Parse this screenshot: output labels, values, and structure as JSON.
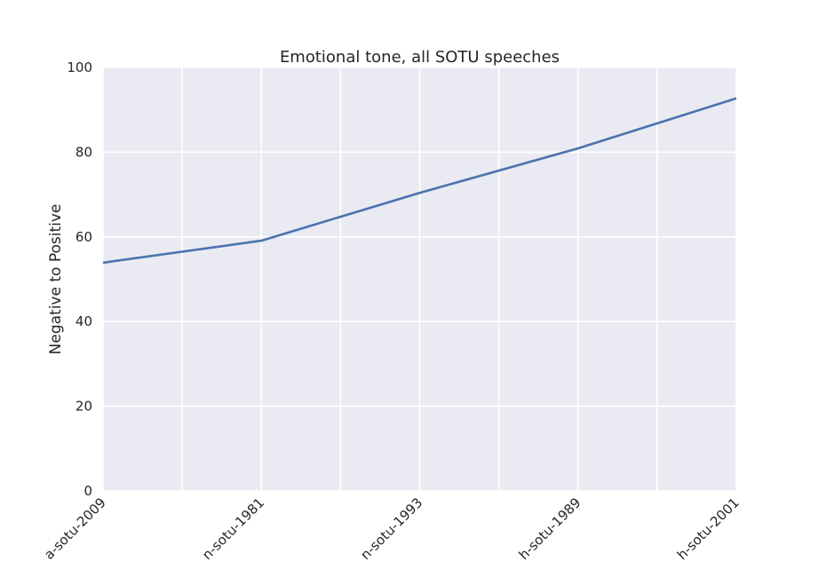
{
  "chart_data": {
    "type": "line",
    "title": "Emotional tone, all SOTU speeches",
    "xlabel": "",
    "ylabel": "Negative to Positive",
    "categories": [
      "a-sotu-2009",
      "n-sotu-1981",
      "n-sotu-1993",
      "h-sotu-1989",
      "h-sotu-2001"
    ],
    "series": [
      {
        "values": [
          53.9,
          59.1,
          70.4,
          80.9,
          92.7
        ]
      }
    ],
    "ylim": [
      0,
      100
    ],
    "yticks": [
      0,
      20,
      40,
      60,
      80,
      100
    ],
    "grid": true,
    "legend": "none",
    "colors": {
      "background": "#eaeaf2",
      "grid": "#ffffff",
      "line": "#4c72b0",
      "text": "#262626"
    }
  }
}
